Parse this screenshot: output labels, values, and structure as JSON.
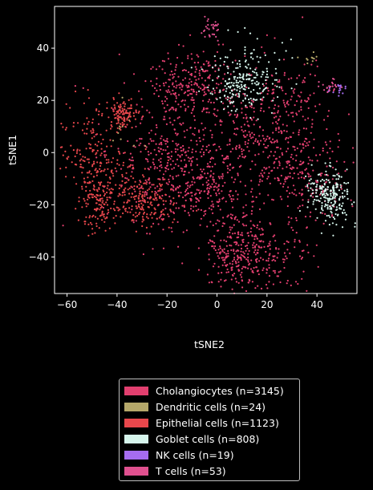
{
  "chart_data": {
    "type": "scatter",
    "xlabel": "tSNE2",
    "ylabel": "tSNE1",
    "xlim": [
      -65,
      56
    ],
    "ylim": [
      -54,
      56
    ],
    "xticks": [
      -60,
      -40,
      -20,
      0,
      20,
      40
    ],
    "yticks": [
      -40,
      -20,
      0,
      20,
      40
    ],
    "xtick_labels": [
      "−60",
      "−40",
      "−20",
      "0",
      "20",
      "40"
    ],
    "ytick_labels": [
      "−40",
      "−20",
      "0",
      "20",
      "40"
    ],
    "legend_position": "below",
    "series": [
      {
        "name": "Cholangiocytes (n=3145)",
        "color": "#e23f6f",
        "count": 3145,
        "regions": [
          [
            -5,
            0,
            20,
            16
          ],
          [
            10,
            10,
            16,
            12
          ],
          [
            -12,
            25,
            8,
            6
          ],
          [
            18,
            -40,
            10,
            8
          ],
          [
            8,
            -38,
            6,
            7
          ],
          [
            -5,
            -15,
            10,
            7
          ],
          [
            25,
            15,
            8,
            12
          ],
          [
            35,
            -10,
            8,
            8
          ],
          [
            -20,
            -5,
            12,
            10
          ]
        ]
      },
      {
        "name": "Dendritic cells (n=24)",
        "color": "#b5a86a",
        "count": 24,
        "regions": [
          [
            38,
            36,
            2,
            1
          ],
          [
            -38,
            12,
            2,
            4
          ],
          [
            -32,
            2,
            2,
            2
          ]
        ]
      },
      {
        "name": "Epithelial cells (n=1123)",
        "color": "#e8474c",
        "count": 1123,
        "regions": [
          [
            -52,
            3,
            7,
            9
          ],
          [
            -45,
            -10,
            6,
            7
          ],
          [
            -35,
            -15,
            8,
            6
          ],
          [
            -48,
            -20,
            3,
            5
          ],
          [
            -38,
            15,
            3,
            3
          ],
          [
            -28,
            -20,
            6,
            4
          ]
        ]
      },
      {
        "name": "Goblet cells (n=808)",
        "color": "#d6f5ec",
        "count": 808,
        "regions": [
          [
            14,
            30,
            8,
            7
          ],
          [
            7,
            25,
            5,
            4
          ],
          [
            42,
            -15,
            4,
            4
          ],
          [
            47,
            -18,
            3,
            5
          ]
        ]
      },
      {
        "name": "NK cells (n=19)",
        "color": "#a66cf0",
        "count": 19,
        "regions": [
          [
            48,
            24,
            2,
            1
          ]
        ]
      },
      {
        "name": "T cells (n=53)",
        "color": "#e0508f",
        "count": 53,
        "regions": [
          [
            -3,
            48,
            2,
            2
          ],
          [
            45,
            25,
            2,
            1.5
          ]
        ]
      }
    ]
  }
}
